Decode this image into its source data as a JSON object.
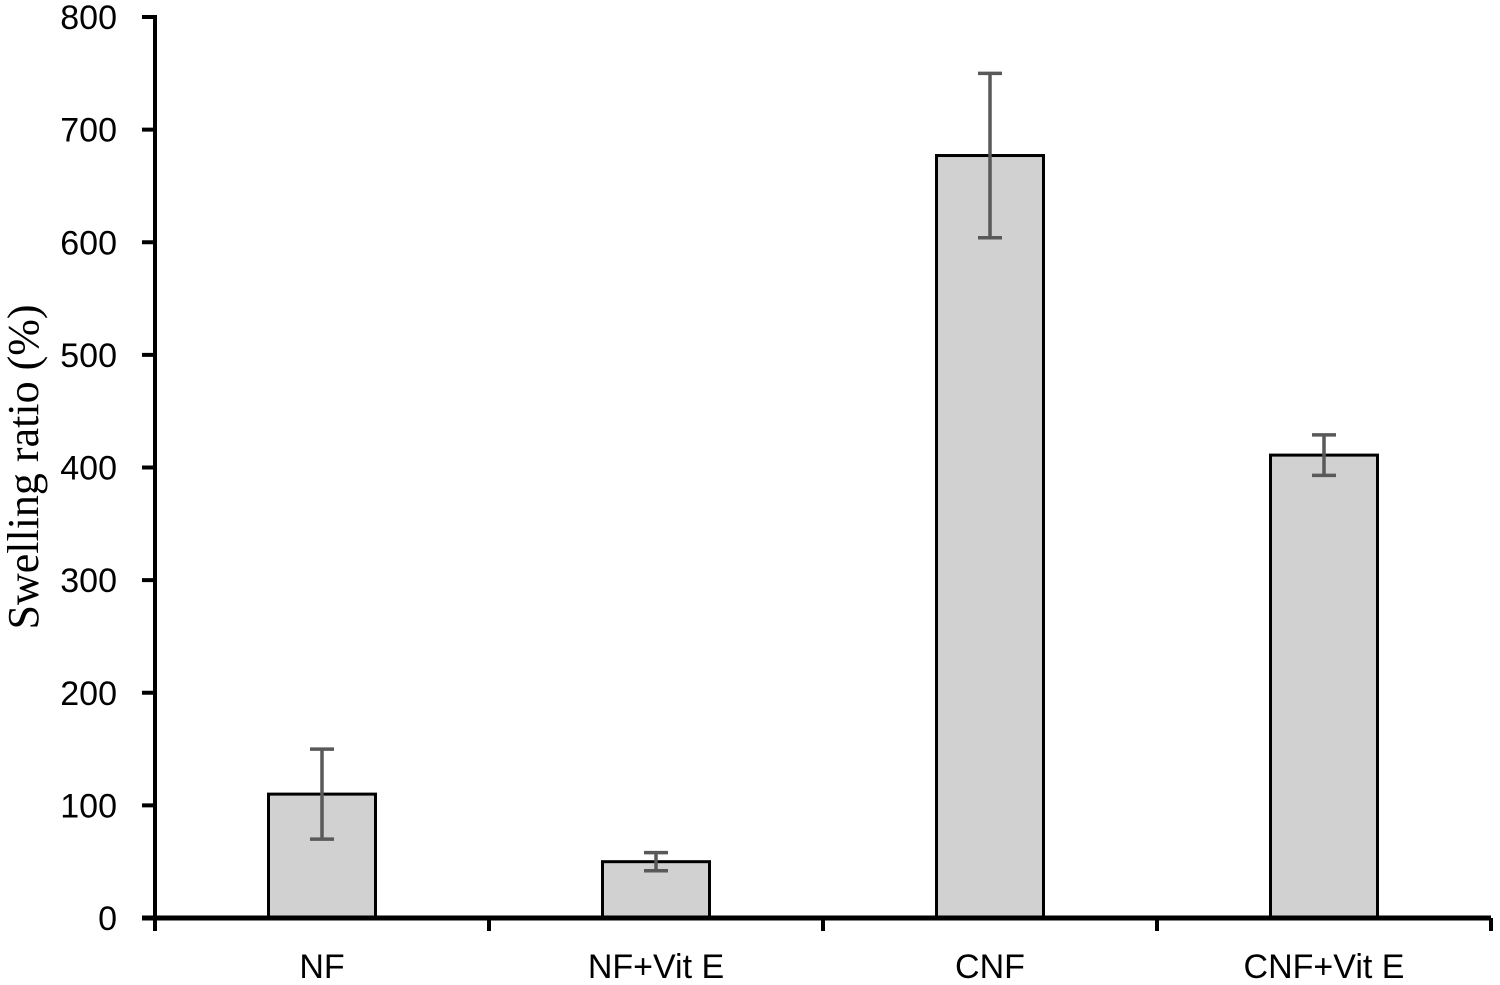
{
  "chart_data": {
    "type": "bar",
    "title": "",
    "xlabel": "",
    "ylabel": "Swelling ratio (%)",
    "categories": [
      "NF",
      "NF+Vit E",
      "CNF",
      "CNF+Vit E"
    ],
    "values": [
      110,
      50,
      677,
      411
    ],
    "errors": [
      40,
      8,
      73,
      18
    ],
    "ylim": [
      0,
      800
    ],
    "ytick_step": 100,
    "ytick_labels": [
      "0",
      "100",
      "200",
      "300",
      "400",
      "500",
      "600",
      "700",
      "800"
    ],
    "grid": false,
    "legend_position": "none",
    "colors": {
      "background": "#ffffff",
      "bar_fill": "#d1d1d1",
      "bar_border": "#000000",
      "error_bar": "#595959",
      "axis": "#000000",
      "text": "#000000"
    }
  }
}
